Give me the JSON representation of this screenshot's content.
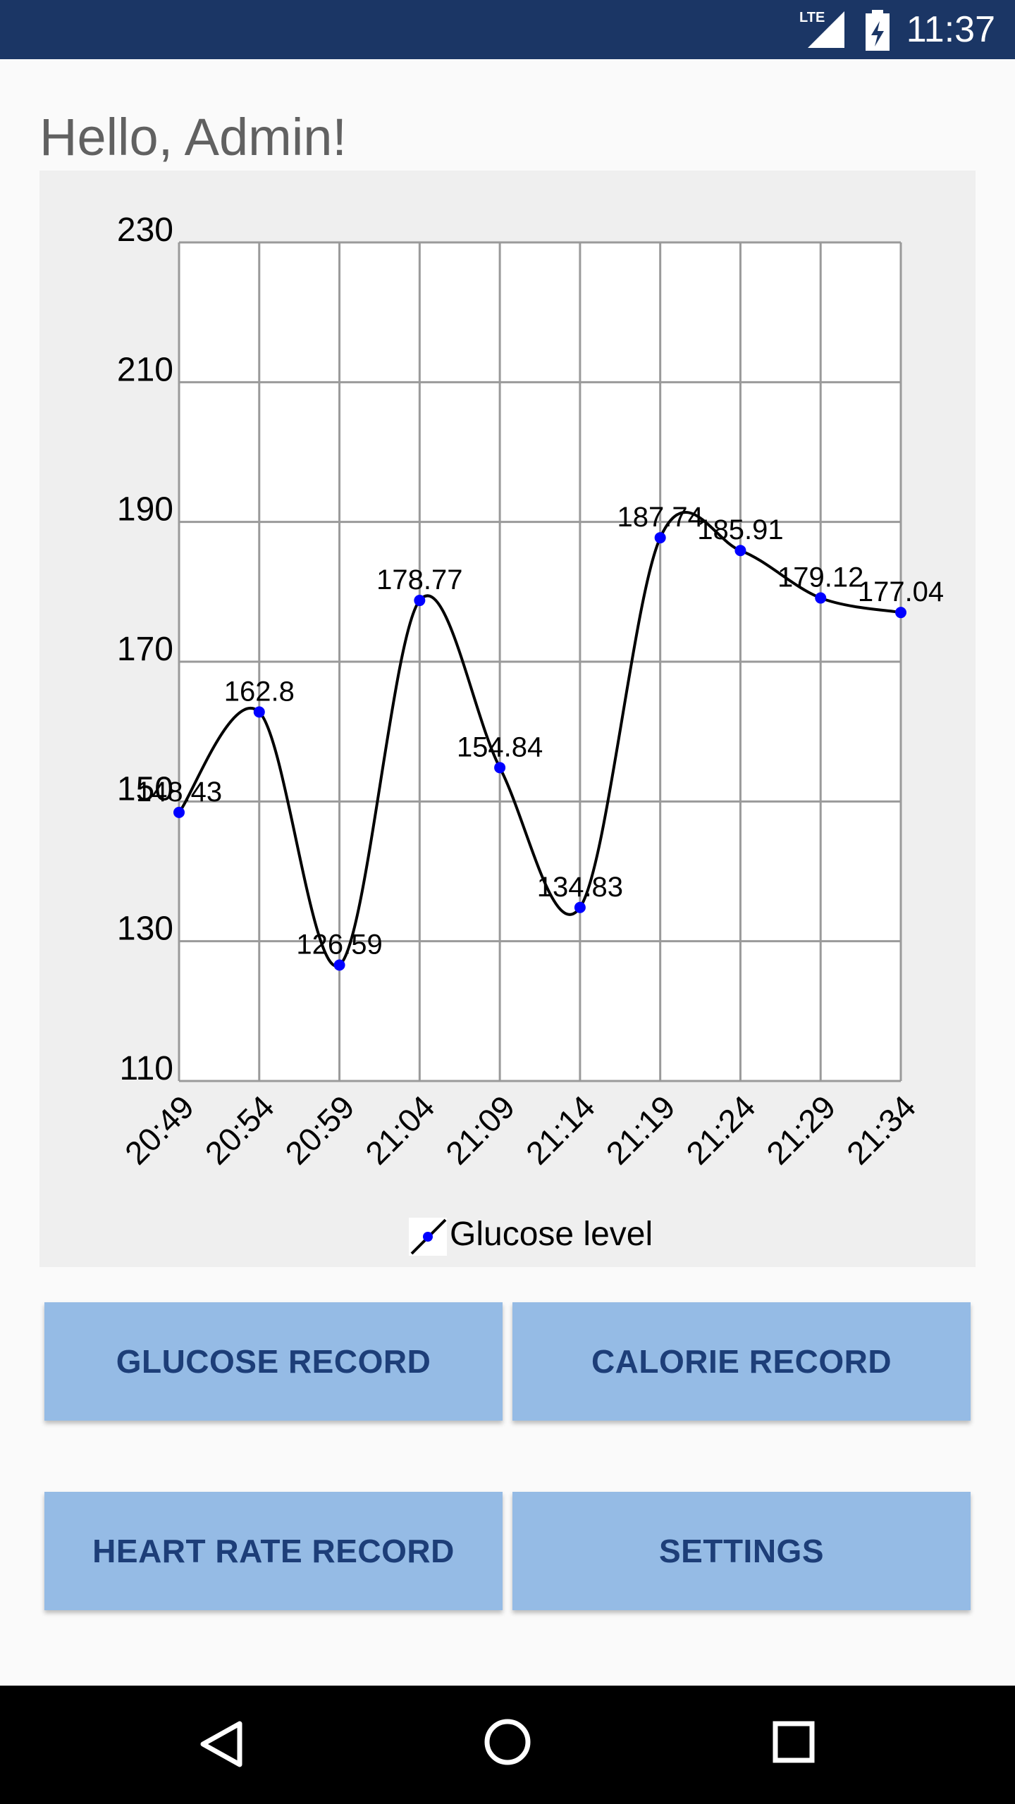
{
  "status_bar": {
    "network": "LTE",
    "time": "11:37",
    "icons": [
      "lte-signal-icon",
      "battery-icon"
    ]
  },
  "greeting": "Hello, Admin!",
  "chart_data": {
    "type": "line",
    "x": [
      "20:49",
      "20:54",
      "20:59",
      "21:04",
      "21:09",
      "21:14",
      "21:19",
      "21:24",
      "21:29",
      "21:34"
    ],
    "series": [
      {
        "name": "Glucose level",
        "values": [
          148.43,
          162.8,
          126.59,
          178.77,
          154.84,
          134.83,
          187.74,
          185.91,
          179.12,
          177.04
        ],
        "color": "#0000ff"
      }
    ],
    "data_labels": [
      "148.43",
      "162.8",
      "126.59",
      "178.77",
      "154.84",
      "134.83",
      "187.74",
      "185.91",
      "179.12",
      "177.04"
    ],
    "yticks": [
      110,
      130,
      150,
      170,
      190,
      210,
      230
    ],
    "ylim": [
      110,
      230
    ],
    "grid": true,
    "legend": "bottom-center",
    "line_color": "#000000"
  },
  "buttons": {
    "glucose": "GLUCOSE RECORD",
    "calorie": "CALORIE RECORD",
    "heart_rate": "HEART RATE RECORD",
    "settings": "SETTINGS"
  },
  "nav_bar": {
    "icons": [
      "back-icon",
      "home-icon",
      "recents-icon"
    ]
  }
}
